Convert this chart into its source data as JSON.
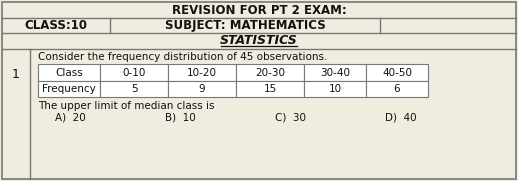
{
  "title": "REVISION FOR PT 2 EXAM:",
  "class_label": "CLASS:10",
  "subject_label": "SUBJECT: MATHEMATICS",
  "section_title": "STATISTICS",
  "question_number": "1",
  "question_text": "Consider the frequency distribution of 45 observations.",
  "table_headers": [
    "Class",
    "0-10",
    "10-20",
    "20-30",
    "30-40",
    "40-50"
  ],
  "table_row_label": "Frequency",
  "table_frequencies": [
    "5",
    "9",
    "15",
    "10",
    "6"
  ],
  "answer_text": "The upper limit of median class is",
  "options": [
    "A)  20",
    "B)  10",
    "C)  30",
    "D)  40"
  ],
  "bg_color": "#f0ece0",
  "table_bg": "#ffffff",
  "border_color": "#777777",
  "text_color": "#111111"
}
